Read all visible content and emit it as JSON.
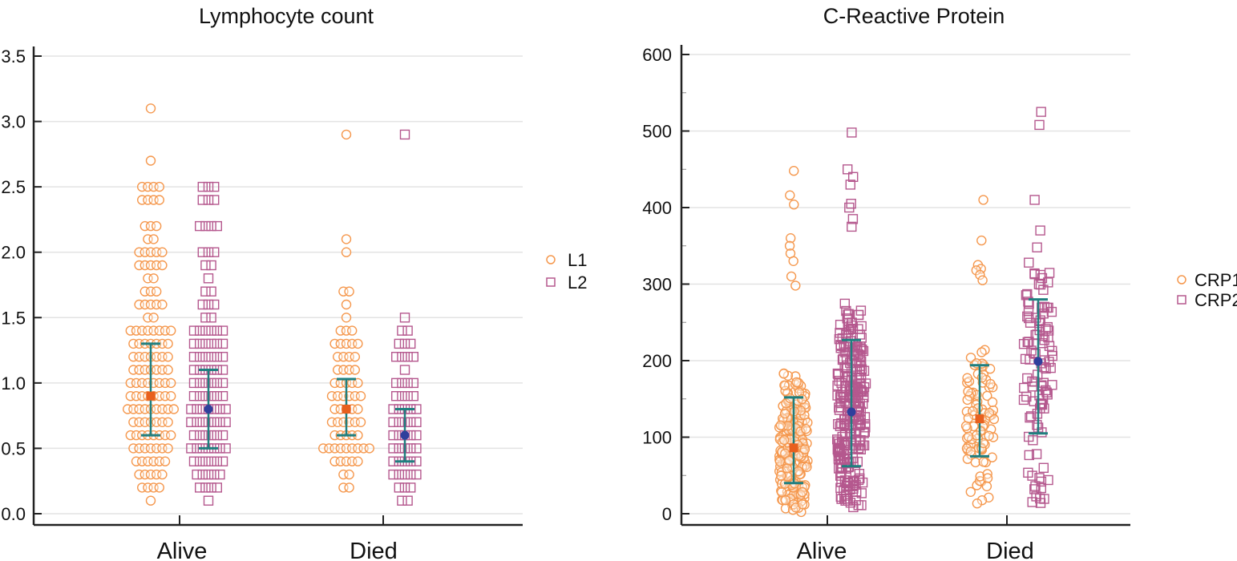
{
  "colors": {
    "series1": "#f5984e",
    "series2": "#b5588e",
    "mean1": "#e8601e",
    "mean2": "#2f3f9c",
    "errorbar": "#1f7f7f"
  },
  "chart_data": [
    {
      "type": "scatter",
      "subtype": "dot-plot with mean ± SD error bars",
      "title": "Lymphocyte count",
      "xlabel": "",
      "ylabel": "",
      "categories": [
        "Alive",
        "Died"
      ],
      "ylim": [
        0,
        3.5
      ],
      "yticks": [
        0.0,
        0.5,
        1.0,
        1.5,
        2.0,
        2.5,
        3.0,
        3.5
      ],
      "ytick_labels": [
        "0.0",
        "0.5",
        "1.0",
        "1.5",
        "2.0",
        "2.5",
        "3.0",
        "3.5"
      ],
      "grid": true,
      "legend": {
        "placement": "right",
        "entries": [
          {
            "name": "L1",
            "marker": "circle"
          },
          {
            "name": "L2",
            "marker": "square"
          }
        ]
      },
      "series": [
        {
          "name": "L1",
          "marker": "circle",
          "groups": [
            {
              "category": "Alive",
              "mean": 0.9,
              "lower": 0.6,
              "upper": 1.3,
              "value_counts": [
                [
                  0.1,
                  1
                ],
                [
                  0.2,
                  4
                ],
                [
                  0.3,
                  5
                ],
                [
                  0.4,
                  6
                ],
                [
                  0.5,
                  7
                ],
                [
                  0.6,
                  8
                ],
                [
                  0.7,
                  7
                ],
                [
                  0.8,
                  9
                ],
                [
                  0.9,
                  8
                ],
                [
                  1.0,
                  8
                ],
                [
                  1.1,
                  7
                ],
                [
                  1.2,
                  7
                ],
                [
                  1.3,
                  7
                ],
                [
                  1.4,
                  8
                ],
                [
                  1.5,
                  2
                ],
                [
                  1.6,
                  5
                ],
                [
                  1.7,
                  3
                ],
                [
                  1.8,
                  2
                ],
                [
                  1.9,
                  5
                ],
                [
                  2.0,
                  5
                ],
                [
                  2.1,
                  2
                ],
                [
                  2.2,
                  3
                ],
                [
                  2.4,
                  4
                ],
                [
                  2.5,
                  4
                ],
                [
                  2.7,
                  1
                ],
                [
                  3.1,
                  1
                ]
              ]
            },
            {
              "category": "Died",
              "mean": 0.8,
              "lower": 0.6,
              "upper": 1.03,
              "value_counts": [
                [
                  0.2,
                  2
                ],
                [
                  0.3,
                  2
                ],
                [
                  0.4,
                  5
                ],
                [
                  0.5,
                  9
                ],
                [
                  0.6,
                  5
                ],
                [
                  0.7,
                  6
                ],
                [
                  0.8,
                  5
                ],
                [
                  0.9,
                  6
                ],
                [
                  1.0,
                  5
                ],
                [
                  1.1,
                  4
                ],
                [
                  1.2,
                  4
                ],
                [
                  1.3,
                  5
                ],
                [
                  1.4,
                  3
                ],
                [
                  1.5,
                  1
                ],
                [
                  1.6,
                  1
                ],
                [
                  1.7,
                  2
                ],
                [
                  2.0,
                  1
                ],
                [
                  2.1,
                  1
                ],
                [
                  2.9,
                  1
                ]
              ]
            }
          ]
        },
        {
          "name": "L2",
          "marker": "square",
          "groups": [
            {
              "category": "Alive",
              "mean": 0.8,
              "lower": 0.5,
              "upper": 1.1,
              "value_counts": [
                [
                  0.1,
                  1
                ],
                [
                  0.2,
                  4
                ],
                [
                  0.3,
                  5
                ],
                [
                  0.4,
                  6
                ],
                [
                  0.5,
                  7
                ],
                [
                  0.6,
                  6
                ],
                [
                  0.7,
                  7
                ],
                [
                  0.8,
                  7
                ],
                [
                  0.9,
                  6
                ],
                [
                  1.0,
                  6
                ],
                [
                  1.1,
                  6
                ],
                [
                  1.2,
                  6
                ],
                [
                  1.3,
                  6
                ],
                [
                  1.4,
                  6
                ],
                [
                  1.5,
                  2
                ],
                [
                  1.6,
                  3
                ],
                [
                  1.7,
                  2
                ],
                [
                  1.8,
                  1
                ],
                [
                  1.9,
                  2
                ],
                [
                  2.0,
                  3
                ],
                [
                  2.2,
                  4
                ],
                [
                  2.4,
                  3
                ],
                [
                  2.5,
                  3
                ]
              ]
            },
            {
              "category": "Died",
              "mean": 0.6,
              "lower": 0.4,
              "upper": 0.8,
              "value_counts": [
                [
                  0.1,
                  2
                ],
                [
                  0.2,
                  3
                ],
                [
                  0.3,
                  5
                ],
                [
                  0.4,
                  5
                ],
                [
                  0.5,
                  5
                ],
                [
                  0.6,
                  5
                ],
                [
                  0.7,
                  5
                ],
                [
                  0.8,
                  5
                ],
                [
                  0.9,
                  4
                ],
                [
                  1.0,
                  4
                ],
                [
                  1.1,
                  1
                ],
                [
                  1.2,
                  4
                ],
                [
                  1.3,
                  3
                ],
                [
                  1.4,
                  2
                ],
                [
                  1.5,
                  1
                ],
                [
                  2.9,
                  1
                ]
              ]
            }
          ]
        }
      ]
    },
    {
      "type": "scatter",
      "subtype": "dot-plot with mean ± SD error bars",
      "title": "C-Reactive Protein",
      "xlabel": "",
      "ylabel": "",
      "categories": [
        "Alive",
        "Died"
      ],
      "ylim": [
        0,
        600
      ],
      "yticks": [
        0,
        100,
        200,
        300,
        400,
        500,
        600
      ],
      "ytick_labels": [
        "0",
        "100",
        "200",
        "300",
        "400",
        "500",
        "600"
      ],
      "minor_ytick_step": 50,
      "grid": true,
      "legend": {
        "placement": "right",
        "entries": [
          {
            "name": "CRP1",
            "marker": "circle"
          },
          {
            "name": "CRP2",
            "marker": "square"
          }
        ]
      },
      "series": [
        {
          "name": "CRP1",
          "marker": "circle",
          "groups": [
            {
              "category": "Alive",
              "mean": 86,
              "lower": 40,
              "upper": 152,
              "n_approx": 260,
              "range": [
                2,
                448
              ],
              "outliers": [
                448,
                416,
                404,
                360,
                350,
                340,
                330,
                310,
                298
              ]
            },
            {
              "category": "Died",
              "mean": 124,
              "lower": 75,
              "upper": 194,
              "n_approx": 95,
              "range": [
                10,
                410
              ],
              "outliers": [
                410,
                357,
                325,
                320,
                318,
                312,
                305
              ]
            }
          ]
        },
        {
          "name": "CRP2",
          "marker": "square",
          "groups": [
            {
              "category": "Alive",
              "mean": 133,
              "lower": 62,
              "upper": 227,
              "n_approx": 270,
              "range": [
                8,
                498
              ],
              "outliers": [
                498,
                450,
                440,
                430,
                405,
                400,
                385,
                375
              ]
            },
            {
              "category": "Died",
              "mean": 199,
              "lower": 105,
              "upper": 280,
              "n_approx": 110,
              "range": [
                12,
                525
              ],
              "outliers": [
                525,
                508,
                410,
                370,
                348,
                42,
                36,
                32,
                20,
                14
              ]
            }
          ]
        }
      ]
    }
  ]
}
